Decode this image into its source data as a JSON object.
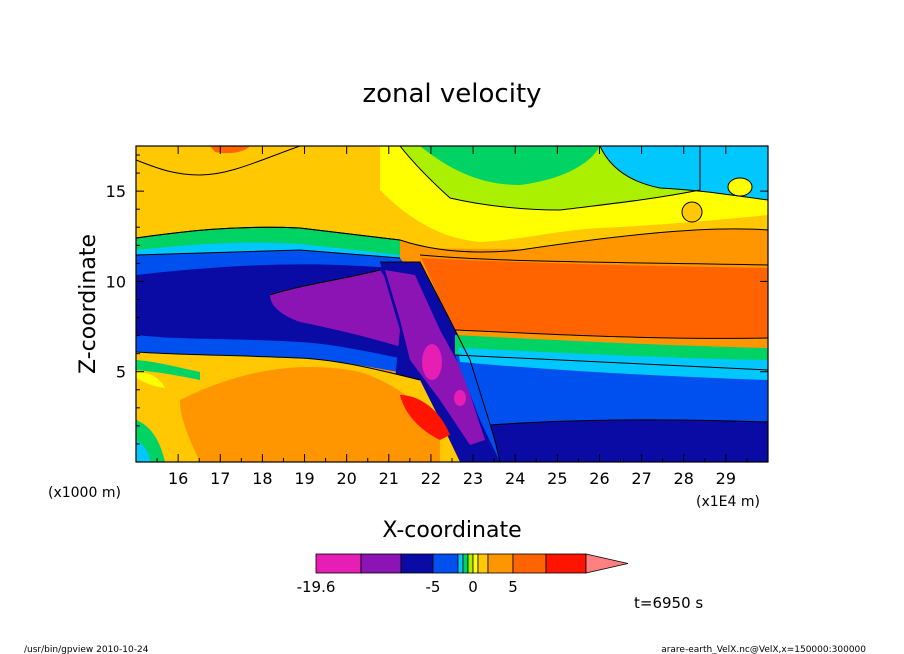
{
  "chart_data": {
    "type": "heatmap",
    "title": "zonal velocity",
    "xlabel": "X-coordinate",
    "ylabel": "Z-coordinate",
    "x_unit_label": "(x1E4 m)",
    "y_unit_label": "(x1000 m)",
    "x_ticks": [
      "16",
      "17",
      "18",
      "19",
      "20",
      "21",
      "22",
      "23",
      "24",
      "25",
      "26",
      "27",
      "28",
      "29"
    ],
    "y_ticks": [
      "5",
      "10",
      "15"
    ],
    "xlim": [
      15.0,
      30.0
    ],
    "ylim": [
      0.0,
      17.5
    ],
    "colorbar": {
      "colors": [
        "#e61eb4",
        "#8c14b4",
        "#0a0aa5",
        "#0050f0",
        "#00c8ff",
        "#00d264",
        "#aaf000",
        "#ffff00",
        "#ffc800",
        "#ff9600",
        "#ff6400",
        "#ff1400",
        "#ff8080"
      ],
      "labels": [
        "-19.6",
        "-5",
        "0",
        "5"
      ],
      "min_label": "-19.6"
    },
    "time_label": "t=6950 s",
    "grid": false
  },
  "footer": {
    "left": "/usr/bin/gpview   2010-10-24",
    "right": "arare-earth_VelX.nc@VelX,x=150000:300000"
  }
}
